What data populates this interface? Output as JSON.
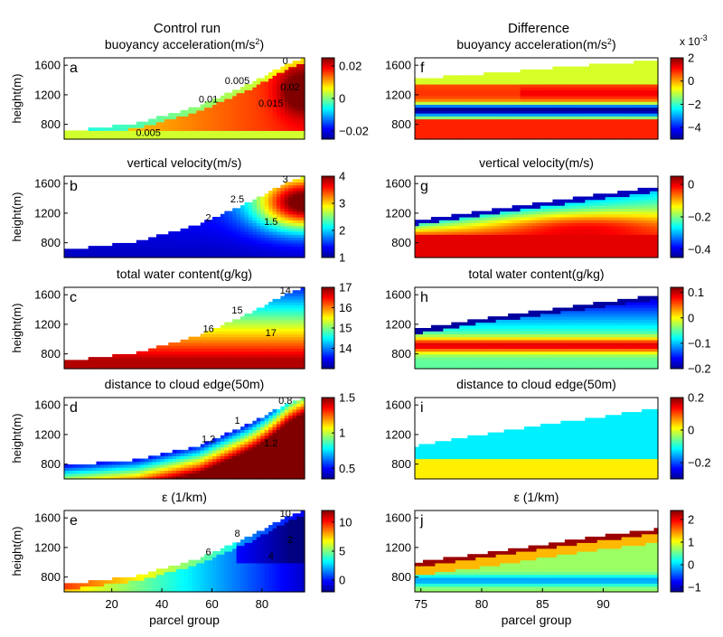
{
  "figure": {
    "column_titles": [
      "Control run",
      "Difference"
    ],
    "ylabel": "height(m)",
    "xlabel": "parcel group",
    "colorbar_exponent": "x 10",
    "colorbar_exponent_power": "-3"
  },
  "chart_data": [
    {
      "type": "heatmap",
      "panel": "a",
      "title": "buoyancy acceleration(m/s",
      "title_sup": "2",
      "title_end": ")",
      "x_range": [
        1,
        97
      ],
      "ylim": [
        600,
        1700
      ],
      "yticks": [
        "800",
        "1200",
        "1600"
      ],
      "xticks": [],
      "cmin": -0.025,
      "cmax": 0.025,
      "colorbar_ticks": [
        "0.02",
        "0",
        "−0.02"
      ],
      "colorbar_values": [
        0.02,
        0,
        -0.02
      ],
      "contour_labels": [
        "0",
        "0.005",
        "0.01",
        "0.015",
        "0.02",
        "0.005"
      ],
      "cloud_top": [
        [
          1,
          700
        ],
        [
          30,
          820
        ],
        [
          55,
          1050
        ],
        [
          75,
          1350
        ],
        [
          90,
          1620
        ],
        [
          97,
          1700
        ]
      ],
      "field": "buoyancy"
    },
    {
      "type": "heatmap",
      "panel": "f",
      "title": "buoyancy acceleration(m/s",
      "title_sup": "2",
      "title_end": ")",
      "x_range": [
        74.5,
        94.5
      ],
      "ylim": [
        600,
        1700
      ],
      "yticks": [
        "800",
        "1200",
        "1600"
      ],
      "xticks": [],
      "cmin": -0.005,
      "cmax": 0.002,
      "colorbar_ticks": [
        "2",
        "0",
        "−2",
        "−4"
      ],
      "colorbar_values": [
        0.002,
        0,
        -0.002,
        -0.004
      ],
      "contour_labels": [],
      "cloud_top": [
        [
          74.5,
          1420
        ],
        [
          80,
          1480
        ],
        [
          85,
          1550
        ],
        [
          90,
          1620
        ],
        [
          94.5,
          1660
        ]
      ],
      "field": "buoyancy_diff"
    },
    {
      "type": "heatmap",
      "panel": "b",
      "title": "vertical velocity(m/s)",
      "x_range": [
        1,
        97
      ],
      "ylim": [
        600,
        1700
      ],
      "yticks": [
        "800",
        "1200",
        "1600"
      ],
      "xticks": [],
      "cmin": 1,
      "cmax": 4,
      "colorbar_ticks": [
        "4",
        "3",
        "2",
        "1"
      ],
      "colorbar_values": [
        4,
        3,
        2,
        1
      ],
      "contour_labels": [
        "3",
        "2.5",
        "2",
        "1.5"
      ],
      "cloud_top": [
        [
          1,
          700
        ],
        [
          30,
          820
        ],
        [
          55,
          1050
        ],
        [
          75,
          1350
        ],
        [
          90,
          1620
        ],
        [
          97,
          1700
        ]
      ],
      "field": "w"
    },
    {
      "type": "heatmap",
      "panel": "g",
      "title": "vertical velocity(m/s)",
      "x_range": [
        74.5,
        94.5
      ],
      "ylim": [
        600,
        1700
      ],
      "yticks": [
        "800",
        "1200",
        "1600"
      ],
      "xticks": [],
      "cmin": -0.45,
      "cmax": 0.05,
      "colorbar_ticks": [
        "0",
        "−0.2",
        "−0.4"
      ],
      "colorbar_values": [
        0,
        -0.2,
        -0.4
      ],
      "contour_labels": [],
      "cloud_top": [
        [
          74.5,
          1100
        ],
        [
          80,
          1230
        ],
        [
          85,
          1350
        ],
        [
          90,
          1460
        ],
        [
          94.5,
          1560
        ]
      ],
      "field": "w_diff"
    },
    {
      "type": "heatmap",
      "panel": "c",
      "title": "total water content(g/kg)",
      "x_range": [
        1,
        97
      ],
      "ylim": [
        600,
        1700
      ],
      "yticks": [
        "800",
        "1200",
        "1600"
      ],
      "xticks": [],
      "cmin": 13,
      "cmax": 17,
      "colorbar_ticks": [
        "17",
        "16",
        "15",
        "14"
      ],
      "colorbar_values": [
        17,
        16,
        15,
        14
      ],
      "contour_labels": [
        "14",
        "15",
        "16",
        "17"
      ],
      "cloud_top": [
        [
          1,
          700
        ],
        [
          30,
          820
        ],
        [
          55,
          1050
        ],
        [
          75,
          1350
        ],
        [
          90,
          1620
        ],
        [
          97,
          1700
        ]
      ],
      "field": "qt"
    },
    {
      "type": "heatmap",
      "panel": "h",
      "title": "total water content(g/kg)",
      "x_range": [
        74.5,
        94.5
      ],
      "ylim": [
        600,
        1700
      ],
      "yticks": [
        "800",
        "1200",
        "1600"
      ],
      "xticks": [],
      "cmin": -0.2,
      "cmax": 0.12,
      "colorbar_ticks": [
        "0.1",
        "0",
        "−0.1",
        "−0.2"
      ],
      "colorbar_values": [
        0.1,
        0,
        -0.1,
        -0.2
      ],
      "contour_labels": [],
      "cloud_top": [
        [
          74.5,
          1130
        ],
        [
          80,
          1280
        ],
        [
          85,
          1390
        ],
        [
          90,
          1500
        ],
        [
          94.5,
          1600
        ]
      ],
      "field": "qt_diff"
    },
    {
      "type": "heatmap",
      "panel": "d",
      "title": "distance to cloud edge(50m)",
      "x_range": [
        1,
        97
      ],
      "ylim": [
        600,
        1700
      ],
      "yticks": [
        "800",
        "1200",
        "1600"
      ],
      "xticks": [],
      "cmin": 0.35,
      "cmax": 1.5,
      "colorbar_ticks": [
        "1.5",
        "1",
        "0.5"
      ],
      "colorbar_values": [
        1.5,
        1,
        0.5
      ],
      "contour_labels": [
        "0.8",
        "1",
        "1.2",
        "1.2"
      ],
      "cloud_top": [
        [
          1,
          780
        ],
        [
          30,
          860
        ],
        [
          55,
          1050
        ],
        [
          75,
          1350
        ],
        [
          90,
          1620
        ],
        [
          97,
          1700
        ]
      ],
      "field": "dist"
    },
    {
      "type": "heatmap",
      "panel": "i",
      "title": "distance to cloud edge(50m)",
      "x_range": [
        74.5,
        94.5
      ],
      "ylim": [
        600,
        1700
      ],
      "yticks": [
        "800",
        "1200",
        "1600"
      ],
      "xticks": [],
      "cmin": -0.3,
      "cmax": 0.2,
      "colorbar_ticks": [
        "0.2",
        "0",
        "−0.2"
      ],
      "colorbar_values": [
        0.2,
        0,
        -0.2
      ],
      "contour_labels": [],
      "cloud_top": [
        [
          74.5,
          1040
        ],
        [
          80,
          1200
        ],
        [
          85,
          1330
        ],
        [
          90,
          1440
        ],
        [
          94.5,
          1560
        ]
      ],
      "field": "dist_diff"
    },
    {
      "type": "heatmap",
      "panel": "e",
      "title": "ε (1/km)",
      "x_range": [
        1,
        97
      ],
      "ylim": [
        600,
        1700
      ],
      "yticks": [
        "800",
        "1200",
        "1600"
      ],
      "xticks": [
        "20",
        "40",
        "60",
        "80"
      ],
      "xtick_values": [
        20,
        40,
        60,
        80
      ],
      "cmin": -2,
      "cmax": 12,
      "colorbar_ticks": [
        "10",
        "5",
        "0"
      ],
      "colorbar_values": [
        10,
        5,
        0
      ],
      "contour_labels": [
        "10",
        "8",
        "6",
        "4",
        "2"
      ],
      "cloud_top": [
        [
          1,
          700
        ],
        [
          30,
          820
        ],
        [
          55,
          1050
        ],
        [
          75,
          1350
        ],
        [
          90,
          1620
        ],
        [
          97,
          1700
        ]
      ],
      "field": "eps"
    },
    {
      "type": "heatmap",
      "panel": "j",
      "title": "ε (1/km)",
      "x_range": [
        74.5,
        94.5
      ],
      "ylim": [
        600,
        1700
      ],
      "yticks": [
        "800",
        "1200",
        "1600"
      ],
      "xticks": [
        "75",
        "80",
        "85",
        "90"
      ],
      "xtick_values": [
        75,
        80,
        85,
        90
      ],
      "cmin": -1.2,
      "cmax": 2.4,
      "colorbar_ticks": [
        "2",
        "1",
        "0",
        "−1"
      ],
      "colorbar_values": [
        2,
        1,
        0,
        -1
      ],
      "contour_labels": [],
      "cloud_top": [
        [
          74.5,
          1000
        ],
        [
          80,
          1120
        ],
        [
          85,
          1240
        ],
        [
          90,
          1360
        ],
        [
          94.5,
          1450
        ]
      ],
      "field": "eps_diff"
    }
  ]
}
